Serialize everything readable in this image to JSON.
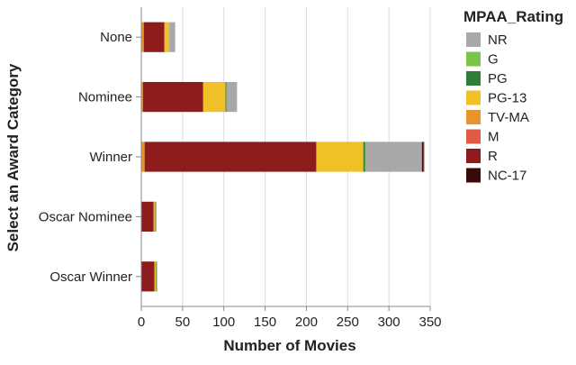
{
  "chart_data": {
    "type": "bar",
    "orientation": "horizontal",
    "stacked": true,
    "title": "",
    "xlabel": "Number of Movies",
    "ylabel": "Select an Award Category",
    "xlim": [
      0,
      350
    ],
    "x_ticks": [
      0,
      50,
      100,
      150,
      200,
      250,
      300,
      350
    ],
    "grid": true,
    "legend_position": "right",
    "legend_title": "MPAA_Rating",
    "categories": [
      "None",
      "Nominee",
      "Winner",
      "Oscar Nominee",
      "Oscar Winner"
    ],
    "stack_order": [
      "TV-MA",
      "R",
      "PG-13",
      "PG",
      "G",
      "NR",
      "NC-17",
      "M"
    ],
    "legend_order": [
      "NR",
      "G",
      "PG",
      "PG-13",
      "TV-MA",
      "M",
      "R",
      "NC-17"
    ],
    "series": [
      {
        "name": "NR",
        "color": "#a8a8a8",
        "values": [
          7,
          13,
          68,
          0,
          0
        ]
      },
      {
        "name": "G",
        "color": "#7fc24a",
        "values": [
          0,
          0,
          1,
          0,
          0
        ]
      },
      {
        "name": "PG",
        "color": "#2e7d3a",
        "values": [
          0,
          1,
          2,
          1,
          1
        ]
      },
      {
        "name": "PG-13",
        "color": "#efc028",
        "values": [
          6,
          27,
          57,
          2,
          2
        ]
      },
      {
        "name": "TV-MA",
        "color": "#e8932b",
        "values": [
          3,
          2,
          4,
          0,
          0
        ]
      },
      {
        "name": "M",
        "color": "#e05a45",
        "values": [
          0,
          0,
          1,
          0,
          0
        ]
      },
      {
        "name": "R",
        "color": "#8e1c1c",
        "values": [
          25,
          73,
          208,
          15,
          16
        ]
      },
      {
        "name": "NC-17",
        "color": "#3b0a0a",
        "values": [
          0,
          0,
          2,
          0,
          0
        ]
      }
    ]
  }
}
